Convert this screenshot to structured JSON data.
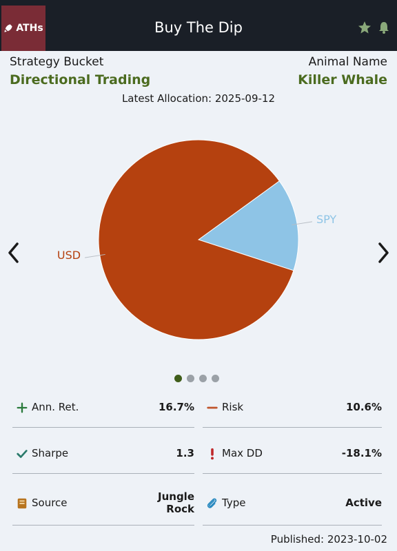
{
  "header": {
    "badge_label": "ATHs",
    "title": "Buy The Dip"
  },
  "strategy": {
    "bucket_label": "Strategy Bucket",
    "bucket_value": "Directional Trading",
    "animal_label": "Animal Name",
    "animal_value": "Killer Whale"
  },
  "allocation": {
    "text": "Latest Allocation: 2025-09-12"
  },
  "chart_data": {
    "type": "pie",
    "slices": [
      {
        "label": "SPY",
        "value": 15,
        "color": "#8ec4e6"
      },
      {
        "label": "USD",
        "value": 85,
        "color": "#b5410f"
      }
    ]
  },
  "carousel": {
    "pages": 4,
    "active": 0
  },
  "metrics": {
    "ann_ret": {
      "label": "Ann. Ret.",
      "value": "16.7%"
    },
    "risk": {
      "label": "Risk",
      "value": "10.6%"
    },
    "sharpe": {
      "label": "Sharpe",
      "value": "1.3"
    },
    "max_dd": {
      "label": "Max DD",
      "value": "-18.1%"
    },
    "source": {
      "label": "Source",
      "value_line1": "Jungle",
      "value_line2": "Rock"
    },
    "type": {
      "label": "Type",
      "value": "Active"
    }
  },
  "published": {
    "text": "Published: 2023-10-02"
  },
  "colors": {
    "accent": "#4b6b1f",
    "header_bg": "#1a1f27",
    "badge_bg": "#7a2c36",
    "icon": "#8aa87a"
  },
  "icons": [
    "rocket-icon",
    "star-icon",
    "bell-icon",
    "chevron-left-icon",
    "chevron-right-icon",
    "plus-icon",
    "minus-icon",
    "check-icon",
    "exclamation-icon",
    "book-icon",
    "paperclip-icon"
  ]
}
